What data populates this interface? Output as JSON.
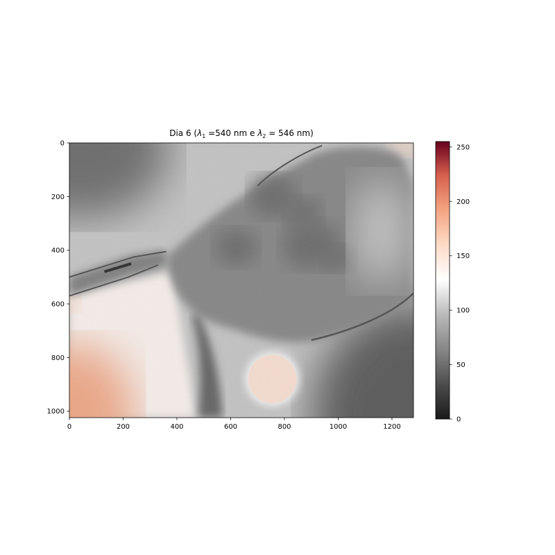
{
  "chart_data": {
    "type": "heatmap",
    "title": {
      "prefix": "Dia 6 (",
      "sym1": "λ",
      "sub1": "1",
      "mid": " =540 nm e ",
      "sym2": "λ",
      "sub2": "2",
      "suffix": " = 546 nm)"
    },
    "image_size": {
      "width": 1280,
      "height": 1024
    },
    "xlim": [
      0,
      1280
    ],
    "ylim": [
      1024,
      0
    ],
    "x_ticks": [
      0,
      200,
      400,
      600,
      800,
      1000,
      1200
    ],
    "y_ticks": [
      0,
      200,
      400,
      600,
      800,
      1000
    ],
    "colorbar": {
      "range": [
        0,
        255
      ],
      "ticks": [
        0,
        50,
        100,
        150,
        200,
        250
      ],
      "colormap": "RdGy_r",
      "stops": [
        {
          "v": 0,
          "color": "#1a1a1a"
        },
        {
          "v": 32,
          "color": "#4d4d4d"
        },
        {
          "v": 64,
          "color": "#878787"
        },
        {
          "v": 96,
          "color": "#bababa"
        },
        {
          "v": 128,
          "color": "#ffffff"
        },
        {
          "v": 160,
          "color": "#fddbc7"
        },
        {
          "v": 192,
          "color": "#f4a582"
        },
        {
          "v": 224,
          "color": "#d6604d"
        },
        {
          "v": 255,
          "color": "#67001f"
        }
      ]
    },
    "features": {
      "background_level": 105,
      "top_left_dark_level": 55,
      "bottom_right_dark_level": 45,
      "bright_region_level": 135,
      "bottom_left_hot_level": 185,
      "cell_level": 70,
      "cell_dark_spots_level": 55,
      "tube_level": 40,
      "stalk_level": 50,
      "bright_disk": {
        "cx": 755,
        "cy": 880,
        "r": 95,
        "level": 150
      }
    },
    "grid": false,
    "legend": "colorbar-right"
  }
}
